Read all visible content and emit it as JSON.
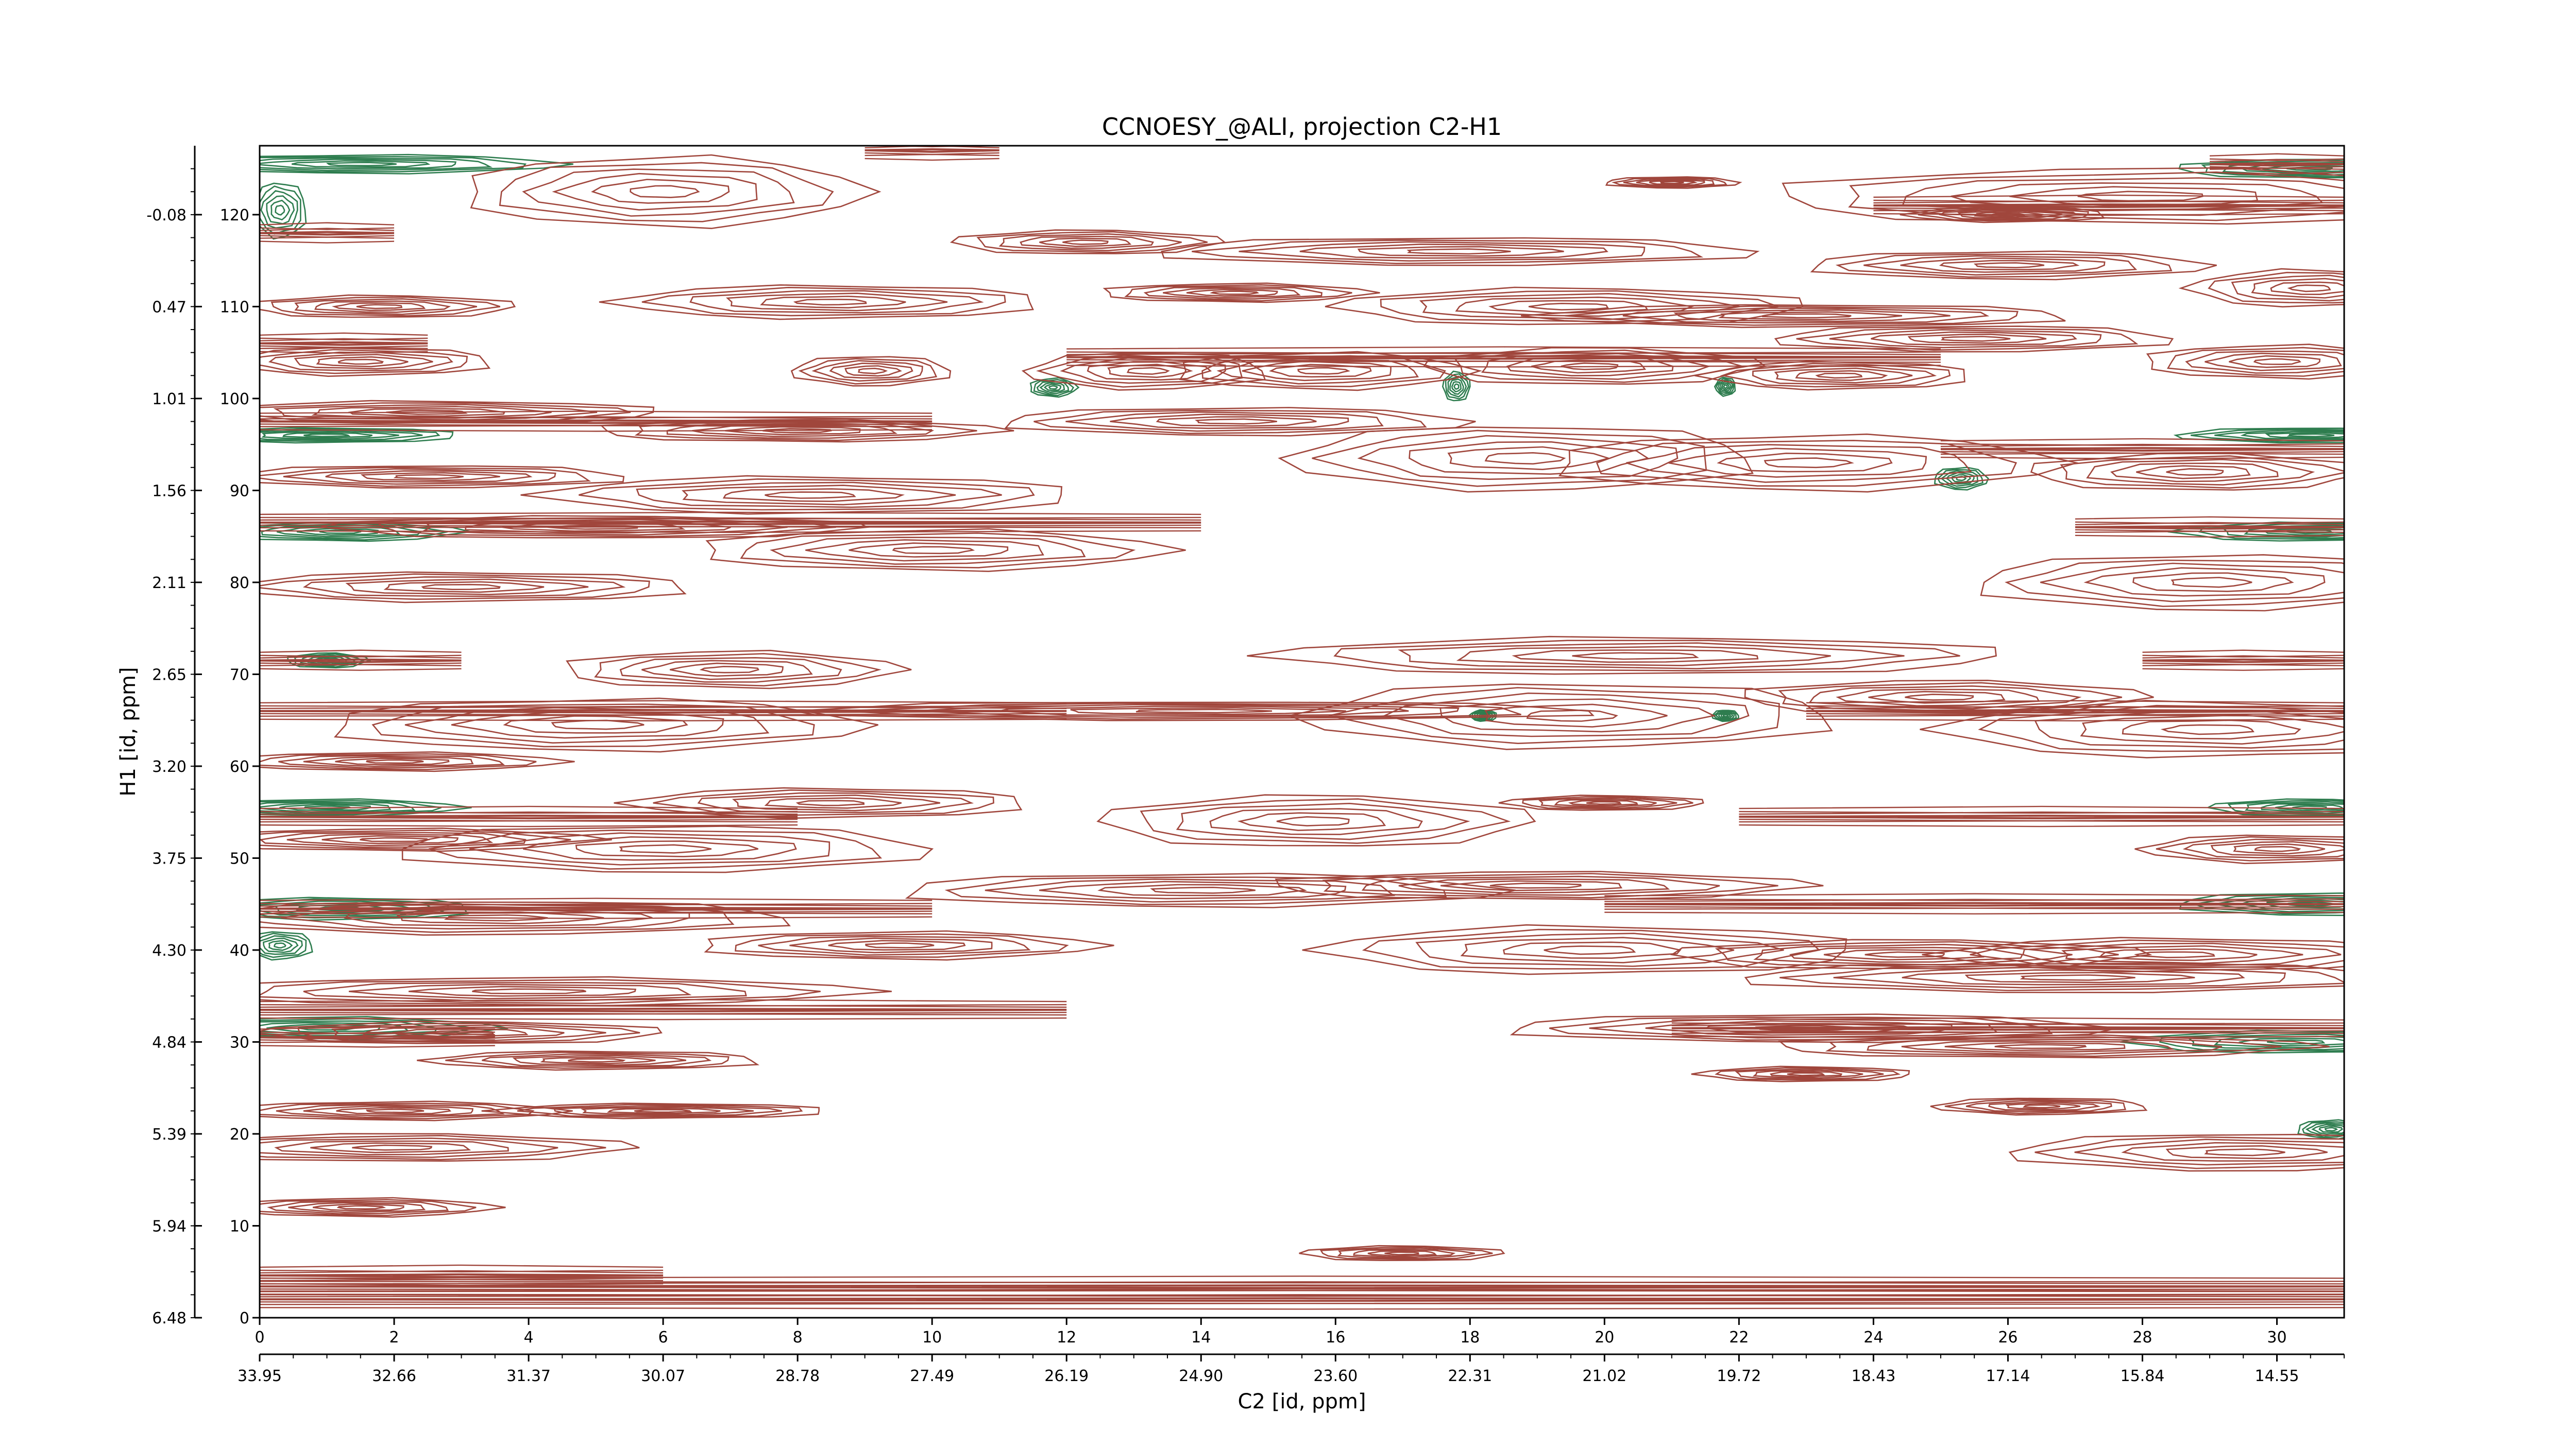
{
  "chart_data": {
    "type": "contour",
    "title": "CCNOESY_@ALI, projection C2-H1",
    "xlabel": "C2 [id, ppm]",
    "ylabel": "H1 [id, ppm]",
    "x_index_ticks": [
      "0",
      "2",
      "4",
      "6",
      "8",
      "10",
      "12",
      "14",
      "16",
      "18",
      "20",
      "22",
      "24",
      "26",
      "28",
      "30"
    ],
    "x_ppm_ticks": [
      "33.95",
      "32.66",
      "31.37",
      "30.07",
      "28.78",
      "27.49",
      "26.19",
      "24.90",
      "23.60",
      "22.31",
      "21.02",
      "19.72",
      "18.43",
      "17.14",
      "15.84",
      "14.55"
    ],
    "y_index_ticks": [
      "0",
      "10",
      "20",
      "30",
      "40",
      "50",
      "60",
      "70",
      "80",
      "90",
      "100",
      "110",
      "120"
    ],
    "y_ppm_ticks": [
      "6.48",
      "5.94",
      "5.39",
      "4.84",
      "4.30",
      "3.75",
      "3.20",
      "2.65",
      "2.11",
      "1.56",
      "1.01",
      "0.47",
      "-0.08"
    ],
    "xlim": [
      0,
      31
    ],
    "ylim": [
      0,
      127.5
    ],
    "colors": {
      "positive": "#a0463c",
      "negative": "#2e7d4f"
    },
    "peaks": [
      {
        "x": 9.1,
        "y": 103,
        "w": 1.2,
        "h": 1.6,
        "sign": "pos"
      },
      {
        "x": 11.8,
        "y": 101.2,
        "w": 0.35,
        "h": 1.0,
        "sign": "neg"
      },
      {
        "x": 17.8,
        "y": 101.3,
        "w": 0.2,
        "h": 1.6,
        "sign": "neg"
      },
      {
        "x": 21.8,
        "y": 101.3,
        "w": 0.15,
        "h": 1.0,
        "sign": "neg"
      },
      {
        "x": 25.3,
        "y": 91.3,
        "w": 0.4,
        "h": 1.2,
        "sign": "neg"
      },
      {
        "x": 1.2,
        "y": 85.5,
        "w": 1.8,
        "h": 1.0,
        "sign": "neg"
      },
      {
        "x": 30.5,
        "y": 85.5,
        "w": 2.0,
        "h": 1.0,
        "sign": "neg"
      },
      {
        "x": 0.3,
        "y": 120.5,
        "w": 0.4,
        "h": 3.0,
        "sign": "neg"
      },
      {
        "x": 1.5,
        "y": 125.5,
        "w": 3.0,
        "h": 1.0,
        "sign": "neg"
      },
      {
        "x": 30.5,
        "y": 125.0,
        "w": 2.0,
        "h": 1.0,
        "sign": "neg"
      },
      {
        "x": 1.0,
        "y": 96.0,
        "w": 2.0,
        "h": 0.8,
        "sign": "neg"
      },
      {
        "x": 30.5,
        "y": 96.0,
        "w": 2.0,
        "h": 0.8,
        "sign": "neg"
      },
      {
        "x": 1.0,
        "y": 55.5,
        "w": 2.0,
        "h": 0.9,
        "sign": "neg"
      },
      {
        "x": 30.5,
        "y": 55.5,
        "w": 1.5,
        "h": 0.9,
        "sign": "neg"
      },
      {
        "x": 1.2,
        "y": 44.5,
        "w": 2.0,
        "h": 1.2,
        "sign": "neg"
      },
      {
        "x": 30.5,
        "y": 45.0,
        "w": 2.0,
        "h": 1.2,
        "sign": "neg"
      },
      {
        "x": 1.0,
        "y": 31.5,
        "w": 2.5,
        "h": 1.2,
        "sign": "neg"
      },
      {
        "x": 30.3,
        "y": 30.0,
        "w": 2.5,
        "h": 1.2,
        "sign": "neg"
      },
      {
        "x": 0.3,
        "y": 40.5,
        "w": 0.5,
        "h": 1.5,
        "sign": "neg"
      },
      {
        "x": 30.8,
        "y": 20.5,
        "w": 0.5,
        "h": 1.0,
        "sign": "neg"
      },
      {
        "x": 1.0,
        "y": 71.5,
        "w": 0.6,
        "h": 0.8,
        "sign": "neg"
      },
      {
        "x": 18.2,
        "y": 65.5,
        "w": 0.2,
        "h": 0.6,
        "sign": "neg"
      },
      {
        "x": 21.8,
        "y": 65.5,
        "w": 0.2,
        "h": 0.6,
        "sign": "neg"
      },
      {
        "x": 6.0,
        "y": 122.5,
        "w": 3.0,
        "h": 3.8,
        "sign": "pos"
      },
      {
        "x": 12.3,
        "y": 117.0,
        "w": 2.0,
        "h": 1.3,
        "sign": "pos"
      },
      {
        "x": 8.5,
        "y": 110.5,
        "w": 3.2,
        "h": 1.8,
        "sign": "pos"
      },
      {
        "x": 17.8,
        "y": 116.0,
        "w": 4.5,
        "h": 1.5,
        "sign": "pos"
      },
      {
        "x": 14.5,
        "y": 111.5,
        "w": 2.0,
        "h": 1.0,
        "sign": "pos"
      },
      {
        "x": 19.5,
        "y": 110.0,
        "w": 3.5,
        "h": 2.0,
        "sign": "pos"
      },
      {
        "x": 23.0,
        "y": 109.0,
        "w": 4.0,
        "h": 1.2,
        "sign": "pos"
      },
      {
        "x": 26.0,
        "y": 114.5,
        "w": 3.0,
        "h": 1.5,
        "sign": "pos"
      },
      {
        "x": 28.0,
        "y": 122.0,
        "w": 5.5,
        "h": 3.0,
        "sign": "pos"
      },
      {
        "x": 30.5,
        "y": 112.0,
        "w": 1.8,
        "h": 2.0,
        "sign": "pos"
      },
      {
        "x": 13.2,
        "y": 103.0,
        "w": 1.8,
        "h": 2.0,
        "sign": "pos"
      },
      {
        "x": 15.8,
        "y": 103.0,
        "w": 2.2,
        "h": 2.0,
        "sign": "pos"
      },
      {
        "x": 19.8,
        "y": 103.5,
        "w": 2.5,
        "h": 2.0,
        "sign": "pos"
      },
      {
        "x": 23.5,
        "y": 102.5,
        "w": 2.0,
        "h": 1.5,
        "sign": "pos"
      },
      {
        "x": 25.5,
        "y": 106.5,
        "w": 3.0,
        "h": 1.4,
        "sign": "pos"
      },
      {
        "x": 30.0,
        "y": 104.0,
        "w": 2.0,
        "h": 1.8,
        "sign": "pos"
      },
      {
        "x": 1.8,
        "y": 110.0,
        "w": 2.0,
        "h": 1.2,
        "sign": "pos"
      },
      {
        "x": 1.5,
        "y": 104.0,
        "w": 2.0,
        "h": 1.5,
        "sign": "pos"
      },
      {
        "x": 14.5,
        "y": 97.5,
        "w": 3.5,
        "h": 1.5,
        "sign": "pos"
      },
      {
        "x": 8.0,
        "y": 96.5,
        "w": 3.0,
        "h": 1.2,
        "sign": "pos"
      },
      {
        "x": 2.5,
        "y": 98.5,
        "w": 3.5,
        "h": 1.2,
        "sign": "pos"
      },
      {
        "x": 18.8,
        "y": 93.5,
        "w": 3.5,
        "h": 3.5,
        "sign": "pos"
      },
      {
        "x": 23.0,
        "y": 93.0,
        "w": 3.8,
        "h": 3.0,
        "sign": "pos"
      },
      {
        "x": 28.8,
        "y": 92.0,
        "w": 2.5,
        "h": 2.0,
        "sign": "pos"
      },
      {
        "x": 8.2,
        "y": 89.5,
        "w": 4.0,
        "h": 2.0,
        "sign": "pos"
      },
      {
        "x": 2.5,
        "y": 91.5,
        "w": 3.0,
        "h": 1.2,
        "sign": "pos"
      },
      {
        "x": 10.0,
        "y": 83.5,
        "w": 3.5,
        "h": 2.2,
        "sign": "pos"
      },
      {
        "x": 5.0,
        "y": 86.0,
        "w": 4.0,
        "h": 1.2,
        "sign": "pos"
      },
      {
        "x": 3.0,
        "y": 79.5,
        "w": 3.5,
        "h": 1.6,
        "sign": "pos"
      },
      {
        "x": 29.0,
        "y": 80.0,
        "w": 3.5,
        "h": 3.0,
        "sign": "pos"
      },
      {
        "x": 7.0,
        "y": 70.5,
        "w": 2.5,
        "h": 2.0,
        "sign": "pos"
      },
      {
        "x": 20.5,
        "y": 72.0,
        "w": 5.5,
        "h": 2.0,
        "sign": "pos"
      },
      {
        "x": 19.5,
        "y": 65.5,
        "w": 4.0,
        "h": 3.5,
        "sign": "pos"
      },
      {
        "x": 5.0,
        "y": 64.5,
        "w": 4.0,
        "h": 2.8,
        "sign": "pos"
      },
      {
        "x": 25.0,
        "y": 67.5,
        "w": 3.0,
        "h": 1.8,
        "sign": "pos"
      },
      {
        "x": 29.0,
        "y": 64.0,
        "w": 4.0,
        "h": 3.0,
        "sign": "pos"
      },
      {
        "x": 14.0,
        "y": 66.0,
        "w": 6.0,
        "h": 1.0,
        "sign": "pos"
      },
      {
        "x": 2.0,
        "y": 60.5,
        "w": 2.5,
        "h": 1.0,
        "sign": "pos"
      },
      {
        "x": 15.7,
        "y": 54.0,
        "w": 3.2,
        "h": 2.8,
        "sign": "pos"
      },
      {
        "x": 8.5,
        "y": 56.0,
        "w": 3.0,
        "h": 1.6,
        "sign": "pos"
      },
      {
        "x": 6.0,
        "y": 51.0,
        "w": 4.0,
        "h": 2.5,
        "sign": "pos"
      },
      {
        "x": 2.0,
        "y": 52.0,
        "w": 3.0,
        "h": 1.2,
        "sign": "pos"
      },
      {
        "x": 20.0,
        "y": 56.0,
        "w": 1.5,
        "h": 0.8,
        "sign": "pos"
      },
      {
        "x": 30.0,
        "y": 51.0,
        "w": 2.0,
        "h": 1.5,
        "sign": "pos"
      },
      {
        "x": 14.0,
        "y": 46.5,
        "w": 4.5,
        "h": 1.8,
        "sign": "pos"
      },
      {
        "x": 19.0,
        "y": 47.0,
        "w": 4.0,
        "h": 1.5,
        "sign": "pos"
      },
      {
        "x": 19.8,
        "y": 40.0,
        "w": 4.0,
        "h": 2.6,
        "sign": "pos"
      },
      {
        "x": 3.5,
        "y": 43.5,
        "w": 4.5,
        "h": 1.8,
        "sign": "pos"
      },
      {
        "x": 9.5,
        "y": 40.5,
        "w": 3.0,
        "h": 1.5,
        "sign": "pos"
      },
      {
        "x": 24.5,
        "y": 39.5,
        "w": 3.5,
        "h": 1.6,
        "sign": "pos"
      },
      {
        "x": 28.5,
        "y": 39.5,
        "w": 3.5,
        "h": 1.8,
        "sign": "pos"
      },
      {
        "x": 27.0,
        "y": 37.0,
        "w": 5.0,
        "h": 1.6,
        "sign": "pos"
      },
      {
        "x": 4.0,
        "y": 35.5,
        "w": 5.0,
        "h": 1.5,
        "sign": "pos"
      },
      {
        "x": 3.0,
        "y": 31.0,
        "w": 3.0,
        "h": 1.2,
        "sign": "pos"
      },
      {
        "x": 5.0,
        "y": 28.0,
        "w": 2.5,
        "h": 1.0,
        "sign": "pos"
      },
      {
        "x": 23.0,
        "y": 31.5,
        "w": 4.5,
        "h": 1.5,
        "sign": "pos"
      },
      {
        "x": 26.5,
        "y": 29.5,
        "w": 4.0,
        "h": 1.2,
        "sign": "pos"
      },
      {
        "x": 23.0,
        "y": 26.5,
        "w": 1.6,
        "h": 0.8,
        "sign": "pos"
      },
      {
        "x": 26.5,
        "y": 23.0,
        "w": 1.6,
        "h": 0.9,
        "sign": "pos"
      },
      {
        "x": 2.0,
        "y": 22.5,
        "w": 2.5,
        "h": 1.0,
        "sign": "pos"
      },
      {
        "x": 2.0,
        "y": 18.5,
        "w": 3.5,
        "h": 1.5,
        "sign": "pos"
      },
      {
        "x": 6.0,
        "y": 22.5,
        "w": 2.5,
        "h": 0.8,
        "sign": "pos"
      },
      {
        "x": 29.5,
        "y": 18.0,
        "w": 3.5,
        "h": 2.0,
        "sign": "pos"
      },
      {
        "x": 1.5,
        "y": 12.0,
        "w": 2.0,
        "h": 1.0,
        "sign": "pos"
      },
      {
        "x": 17.0,
        "y": 7.0,
        "w": 1.5,
        "h": 0.8,
        "sign": "pos"
      },
      {
        "x": 26.0,
        "y": 120.0,
        "w": 1.5,
        "h": 0.8,
        "sign": "pos"
      },
      {
        "x": 21.0,
        "y": 123.5,
        "w": 1.0,
        "h": 0.6,
        "sign": "pos"
      }
    ],
    "ridges": [
      {
        "y": 2.0,
        "x0": 0.0,
        "x1": 31.0,
        "sign": "pos"
      },
      {
        "y": 3.4,
        "x0": 0.0,
        "x1": 31.0,
        "sign": "pos"
      },
      {
        "y": 4.6,
        "x0": 0.0,
        "x1": 6.0,
        "sign": "pos"
      },
      {
        "y": 30.5,
        "x0": 0.0,
        "x1": 3.5,
        "sign": "pos"
      },
      {
        "y": 31.5,
        "x0": 21.0,
        "x1": 31.0,
        "sign": "pos"
      },
      {
        "y": 33.5,
        "x0": 0.0,
        "x1": 12.0,
        "sign": "pos"
      },
      {
        "y": 44.5,
        "x0": 0.0,
        "x1": 10.0,
        "sign": "pos"
      },
      {
        "y": 45.0,
        "x0": 20.0,
        "x1": 31.0,
        "sign": "pos"
      },
      {
        "y": 54.5,
        "x0": 0.0,
        "x1": 8.0,
        "sign": "pos"
      },
      {
        "y": 54.5,
        "x0": 22.0,
        "x1": 31.0,
        "sign": "pos"
      },
      {
        "y": 66.0,
        "x0": 0.0,
        "x1": 12.0,
        "sign": "pos"
      },
      {
        "y": 66.0,
        "x0": 23.0,
        "x1": 31.0,
        "sign": "pos"
      },
      {
        "y": 71.5,
        "x0": 0.0,
        "x1": 3.0,
        "sign": "pos"
      },
      {
        "y": 71.5,
        "x0": 28.0,
        "x1": 31.0,
        "sign": "pos"
      },
      {
        "y": 86.5,
        "x0": 0.0,
        "x1": 14.0,
        "sign": "pos"
      },
      {
        "y": 86.0,
        "x0": 27.0,
        "x1": 31.0,
        "sign": "pos"
      },
      {
        "y": 94.5,
        "x0": 25.0,
        "x1": 31.0,
        "sign": "pos"
      },
      {
        "y": 97.5,
        "x0": 0.0,
        "x1": 10.0,
        "sign": "pos"
      },
      {
        "y": 104.5,
        "x0": 12.0,
        "x1": 25.0,
        "sign": "pos"
      },
      {
        "y": 106.0,
        "x0": 0.0,
        "x1": 2.5,
        "sign": "pos"
      },
      {
        "y": 118.0,
        "x0": 0.0,
        "x1": 2.0,
        "sign": "pos"
      },
      {
        "y": 121.0,
        "x0": 24.0,
        "x1": 31.0,
        "sign": "pos"
      },
      {
        "y": 125.5,
        "x0": 29.0,
        "x1": 31.0,
        "sign": "pos"
      },
      {
        "y": 127.0,
        "x0": 9.0,
        "x1": 11.0,
        "sign": "pos"
      }
    ]
  }
}
